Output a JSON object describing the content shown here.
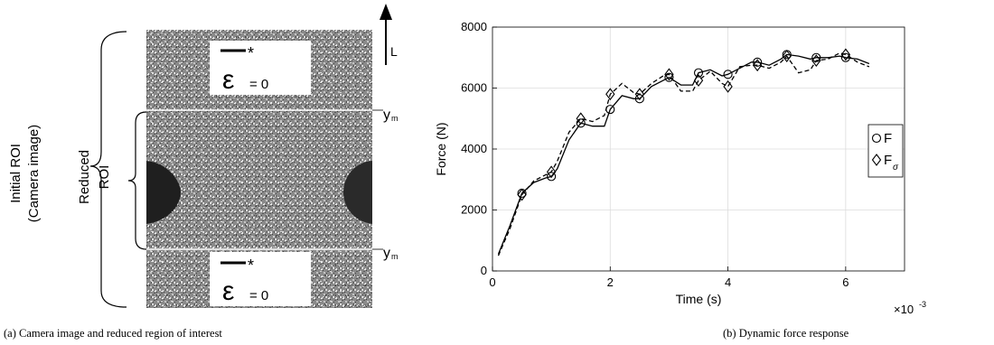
{
  "panel_a": {
    "top_label_epsilon": "ε",
    "top_label_eq": "= 0",
    "top_label_star": "*",
    "bottom_label_epsilon": "ε",
    "bottom_label_eq": "= 0",
    "bottom_label_star": "*",
    "arrow_label": "L",
    "ymax_base": "y",
    "ymax_sub": "max",
    "ymin_base": "y",
    "ymin_sub": "min",
    "outer_bracket_line1": "Initial ROI",
    "outer_bracket_line2": "(Camera image)",
    "inner_bracket_line1": "Reduced",
    "inner_bracket_line2": "ROI",
    "caption": "(a)  Camera image and reduced region of interest"
  },
  "panel_b": {
    "caption": "(b)  Dynamic force response",
    "legend_F": "F",
    "legend_Fsigma_base": "F",
    "legend_Fsigma_sub": "σ",
    "x_multiplier_base": "×10",
    "x_multiplier_exp": "-3"
  },
  "chart_data": {
    "type": "line",
    "title": "",
    "xlabel": "Time (s)",
    "ylabel": "Force (N)",
    "xlim": [
      0,
      7
    ],
    "ylim": [
      0,
      8000
    ],
    "x_scale_note": "×10^-3",
    "xticks": [
      0,
      2,
      4,
      6
    ],
    "yticks": [
      0,
      2000,
      4000,
      6000,
      8000
    ],
    "grid": true,
    "legend_position": "right",
    "series": [
      {
        "name": "F",
        "style": "solid",
        "marker": "circle",
        "x": [
          0.1,
          0.3,
          0.5,
          0.7,
          0.9,
          1.0,
          1.1,
          1.3,
          1.5,
          1.7,
          1.9,
          2.0,
          2.2,
          2.4,
          2.5,
          2.7,
          2.9,
          3.0,
          3.2,
          3.4,
          3.5,
          3.7,
          3.9,
          4.0,
          4.2,
          4.4,
          4.5,
          4.7,
          4.9,
          5.0,
          5.2,
          5.4,
          5.5,
          5.7,
          5.9,
          6.0,
          6.2,
          6.4
        ],
        "y": [
          550,
          1500,
          2550,
          2900,
          3050,
          3100,
          3350,
          4300,
          4850,
          4750,
          4750,
          5300,
          5750,
          5650,
          5650,
          6050,
          6250,
          6350,
          6100,
          6100,
          6500,
          6600,
          6400,
          6450,
          6650,
          6850,
          6850,
          6750,
          6950,
          7100,
          7050,
          6950,
          7000,
          7000,
          7050,
          7000,
          6950,
          6800
        ],
        "marker_x": [
          0.5,
          1.0,
          1.5,
          2.0,
          2.5,
          3.0,
          3.5,
          4.0,
          4.5,
          5.0,
          5.5,
          6.0
        ],
        "marker_y": [
          2550,
          3100,
          4850,
          5300,
          5650,
          6350,
          6500,
          6450,
          6850,
          7100,
          7000,
          7000
        ]
      },
      {
        "name": "Fσ",
        "style": "dashed",
        "marker": "diamond",
        "x": [
          0.1,
          0.3,
          0.5,
          0.7,
          0.9,
          1.0,
          1.1,
          1.3,
          1.5,
          1.7,
          1.9,
          2.0,
          2.2,
          2.4,
          2.5,
          2.7,
          2.9,
          3.0,
          3.2,
          3.4,
          3.5,
          3.7,
          3.9,
          4.0,
          4.2,
          4.4,
          4.5,
          4.7,
          4.9,
          5.0,
          5.2,
          5.4,
          5.5,
          5.7,
          5.9,
          6.0,
          6.2,
          6.4
        ],
        "y": [
          500,
          1400,
          2500,
          2950,
          3150,
          3250,
          3600,
          4550,
          5000,
          4900,
          5100,
          5800,
          6150,
          5850,
          5800,
          6150,
          6400,
          6450,
          5900,
          5900,
          6250,
          6550,
          6150,
          6050,
          6700,
          6750,
          6750,
          6650,
          6850,
          7050,
          6500,
          6600,
          6900,
          6950,
          7150,
          7100,
          6850,
          6700
        ],
        "marker_x": [
          0.5,
          1.0,
          1.5,
          2.0,
          2.5,
          3.0,
          3.5,
          4.0,
          4.5,
          5.0,
          5.5,
          6.0
        ],
        "marker_y": [
          2500,
          3250,
          5000,
          5800,
          5800,
          6450,
          6250,
          6050,
          6750,
          7050,
          6900,
          7100
        ]
      }
    ]
  }
}
